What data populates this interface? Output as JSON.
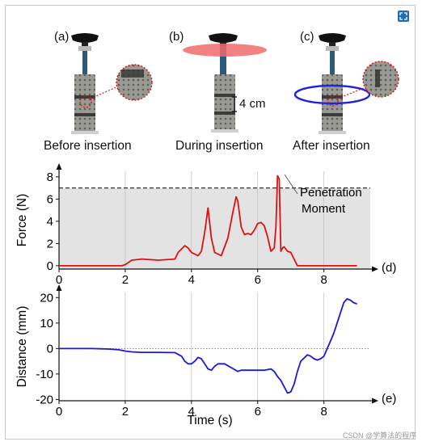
{
  "figure": {
    "panels": {
      "a": "(a)",
      "b": "(b)",
      "c": "(c)",
      "d": "(d)",
      "e": "(e)"
    },
    "captions": {
      "before": "Before insertion",
      "during": "During insertion",
      "after": "After insertion"
    },
    "scale_label": "4 cm",
    "annotation": {
      "line1": "Penetration",
      "line2": "Moment"
    },
    "watermark": "CSDN @学算法的程序"
  },
  "chart_data": [
    {
      "type": "line",
      "title": "",
      "xlabel": "",
      "ylabel": "Force (N)",
      "xlim": [
        0,
        9.4
      ],
      "ylim": [
        -0.3,
        8.5
      ],
      "xticks": [
        0,
        2,
        4,
        6,
        8
      ],
      "yticks": [
        0,
        2,
        4,
        6,
        8
      ],
      "threshold": 7.0,
      "grid": "vertical",
      "series": [
        {
          "color": "#dd1111",
          "x": [
            0,
            1.9,
            2.0,
            2.2,
            2.5,
            3.0,
            3.5,
            3.6,
            3.8,
            3.9,
            4.0,
            4.2,
            4.3,
            4.4,
            4.5,
            4.6,
            4.7,
            4.9,
            5.1,
            5.25,
            5.35,
            5.4,
            5.5,
            5.6,
            5.7,
            5.8,
            5.9,
            6.0,
            6.1,
            6.2,
            6.3,
            6.4,
            6.5,
            6.55,
            6.6,
            6.65,
            6.7,
            6.75,
            6.8,
            6.9,
            7.0,
            7.1,
            7.15,
            7.2,
            7.3,
            7.6,
            8.0,
            9.0
          ],
          "y": [
            0,
            0,
            0.1,
            0.5,
            0.6,
            0.5,
            0.6,
            1.2,
            1.8,
            1.6,
            1.2,
            0.9,
            1.3,
            3.0,
            5.2,
            2.5,
            1.2,
            0.9,
            2.5,
            4.8,
            6.2,
            5.8,
            3.5,
            2.8,
            2.9,
            2.8,
            3.2,
            3.8,
            3.9,
            3.6,
            2.6,
            1.3,
            1.6,
            3.5,
            8.1,
            7.8,
            1.3,
            1.6,
            1.7,
            1.3,
            1.2,
            0.6,
            0.3,
            0,
            0,
            0,
            0,
            0
          ]
        }
      ]
    },
    {
      "type": "line",
      "title": "",
      "xlabel": "Time (s)",
      "ylabel": "Distance (mm)",
      "xlim": [
        0,
        9.4
      ],
      "ylim": [
        -20.5,
        22
      ],
      "xticks": [
        0,
        2,
        4,
        6,
        8
      ],
      "yticks": [
        -20,
        -10,
        0,
        10,
        20
      ],
      "reference_y": 0,
      "grid": "vertical",
      "series": [
        {
          "color": "#1a1ad6",
          "x": [
            0,
            0.5,
            1.0,
            1.5,
            1.8,
            2.0,
            2.2,
            2.5,
            3.0,
            3.5,
            3.7,
            3.8,
            3.9,
            4.0,
            4.1,
            4.2,
            4.3,
            4.4,
            4.5,
            4.6,
            4.7,
            4.8,
            5.0,
            5.2,
            5.4,
            5.5,
            5.6,
            5.8,
            6.0,
            6.2,
            6.4,
            6.5,
            6.6,
            6.7,
            6.8,
            6.9,
            7.0,
            7.1,
            7.2,
            7.3,
            7.5,
            7.6,
            7.7,
            7.8,
            7.9,
            8.0,
            8.1,
            8.2,
            8.3,
            8.4,
            8.5,
            8.6,
            8.7,
            8.8,
            8.9,
            9.0
          ],
          "y": [
            0,
            0,
            0,
            -0.2,
            -0.5,
            -1.0,
            -1.3,
            -1.5,
            -1.5,
            -1.6,
            -3.0,
            -5.0,
            -6.0,
            -6.0,
            -5.0,
            -3.5,
            -4.0,
            -6.0,
            -8.0,
            -8.5,
            -7.0,
            -6.0,
            -6.0,
            -7.5,
            -9.0,
            -8.5,
            -8.5,
            -8.5,
            -8.5,
            -8.5,
            -8.0,
            -9.0,
            -11.0,
            -12.5,
            -15.0,
            -17.5,
            -17.0,
            -14.0,
            -9.0,
            -5.0,
            -2.5,
            -3.0,
            -4.0,
            -4.5,
            -4.0,
            -3.0,
            0.0,
            3.0,
            6.0,
            10.0,
            14.0,
            18.0,
            19.5,
            19.0,
            18.0,
            17.5
          ]
        }
      ]
    }
  ]
}
